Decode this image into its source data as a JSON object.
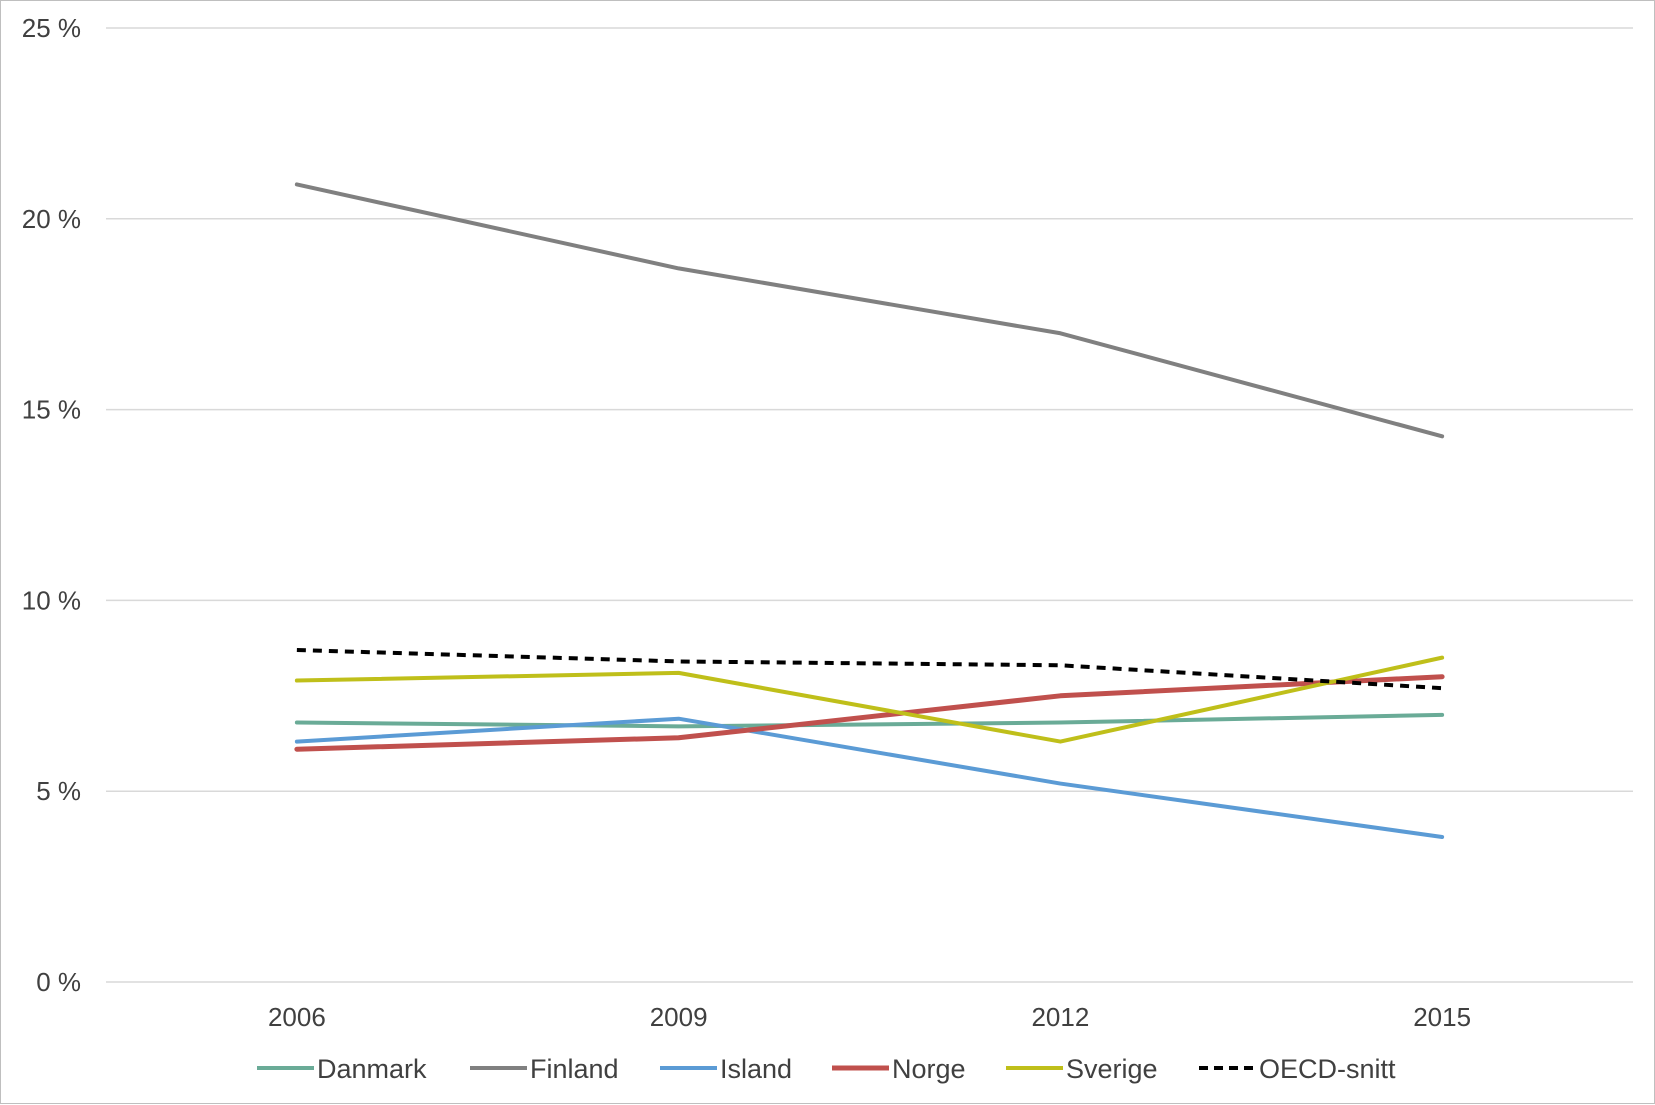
{
  "chart_data": {
    "type": "line",
    "categories": [
      "2006",
      "2009",
      "2012",
      "2015"
    ],
    "ylim": [
      0,
      25
    ],
    "yticks": [
      0,
      5,
      10,
      15,
      20,
      25
    ],
    "ytick_labels": [
      "0 %",
      "5 %",
      "10 %",
      "15 %",
      "20 %",
      "25 %"
    ],
    "grid": true,
    "legend_position": "bottom",
    "series": [
      {
        "name": "Danmark",
        "values": [
          6.8,
          6.7,
          6.8,
          7.0
        ],
        "color": "#6aab97",
        "dashed": false,
        "width": 4
      },
      {
        "name": "Finland",
        "values": [
          20.9,
          18.7,
          17.0,
          14.3
        ],
        "color": "#808080",
        "dashed": false,
        "width": 4
      },
      {
        "name": "Island",
        "values": [
          6.3,
          6.9,
          5.2,
          3.8
        ],
        "color": "#5b9bd5",
        "dashed": false,
        "width": 4
      },
      {
        "name": "Norge",
        "values": [
          6.1,
          6.4,
          7.5,
          8.0
        ],
        "color": "#c0504d",
        "dashed": false,
        "width": 5
      },
      {
        "name": "Sverige",
        "values": [
          7.9,
          8.1,
          6.3,
          8.5
        ],
        "color": "#bfbf1a",
        "dashed": false,
        "width": 4
      },
      {
        "name": "OECD-snitt",
        "values": [
          8.7,
          8.4,
          8.3,
          7.7
        ],
        "color": "#000000",
        "dashed": true,
        "width": 4
      }
    ]
  }
}
